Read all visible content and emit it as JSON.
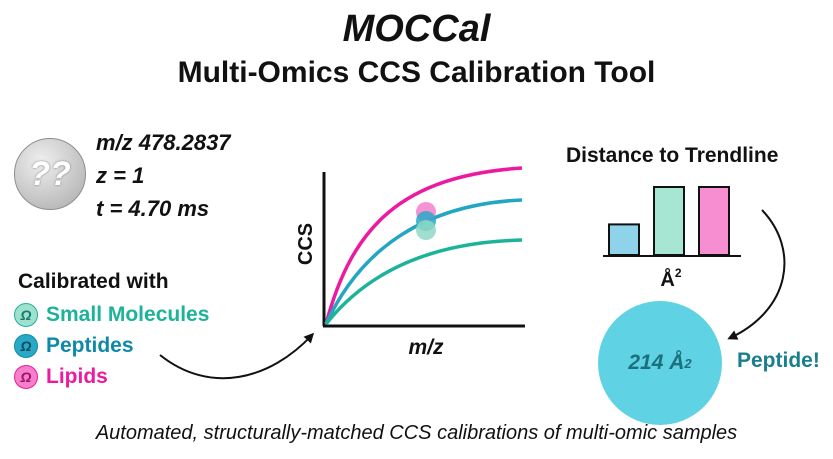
{
  "header": {
    "title": "MOCCal",
    "subtitle": "Multi-Omics CCS Calibration Tool"
  },
  "unknown": {
    "symbol": "??",
    "mz": "m/z 478.2837",
    "charge": "z = 1",
    "time": "t = 4.70 ms"
  },
  "calibration": {
    "title": "Calibrated with",
    "omega_symbol": "Ω",
    "items": [
      {
        "label": "Small Molecules",
        "color": "#1db39a",
        "fill": "#9fe0cf"
      },
      {
        "label": "Peptides",
        "color": "#0e8aa8",
        "fill": "#2aa9c7"
      },
      {
        "label": "Lipids",
        "color": "#ec1aa0",
        "fill": "#f67fcb"
      }
    ]
  },
  "plot": {
    "ylabel": "CCS",
    "xlabel": "m/z"
  },
  "distance": {
    "title": "Distance to Trendline",
    "unit": "Å",
    "unit_exp": "2",
    "bars": [
      {
        "value": 0.45,
        "color": "#8fd3ea"
      },
      {
        "value": 1.0,
        "color": "#a8e6d4"
      },
      {
        "value": 1.0,
        "color": "#f78ed1"
      }
    ]
  },
  "result": {
    "value": "214 Å",
    "exp": "2",
    "label": "Peptide!"
  },
  "footer": {
    "caption": "Automated, structurally-matched CCS calibrations of multi-omic samples"
  }
}
